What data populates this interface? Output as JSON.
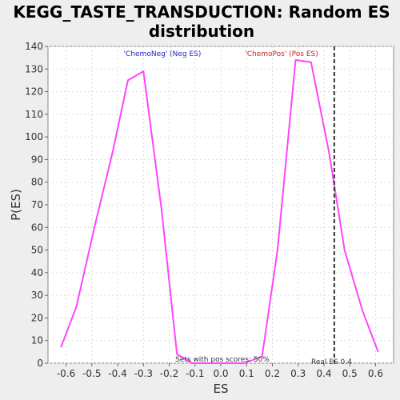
{
  "chart_data": {
    "type": "line",
    "title_line1": "KEGG_TASTE_TRANSDUCTION: Random ES",
    "title_line2": "distribution",
    "xlabel": "ES",
    "ylabel": "P(ES)",
    "xlim": [
      -0.67,
      0.67
    ],
    "ylim": [
      0,
      140
    ],
    "x_ticks": [
      "-0.6",
      "-0.5",
      "-0.4",
      "-0.3",
      "-0.2",
      "-0.1",
      "0.0",
      "0.1",
      "0.2",
      "0.3",
      "0.4",
      "0.5",
      "0.6"
    ],
    "x_tick_values": [
      -0.6,
      -0.5,
      -0.4,
      -0.3,
      -0.2,
      -0.1,
      0.0,
      0.1,
      0.2,
      0.3,
      0.4,
      0.5,
      0.6
    ],
    "y_ticks": [
      "0",
      "10",
      "20",
      "30",
      "40",
      "50",
      "60",
      "70",
      "80",
      "90",
      "100",
      "110",
      "120",
      "130",
      "140"
    ],
    "y_tick_values": [
      0,
      10,
      20,
      30,
      40,
      50,
      60,
      70,
      80,
      90,
      100,
      110,
      120,
      130,
      140
    ],
    "grid": true,
    "series": [
      {
        "color": "#ff44ff",
        "x": [
          -0.62,
          -0.56,
          -0.49,
          -0.42,
          -0.36,
          -0.3,
          -0.23,
          -0.17,
          -0.11,
          -0.05,
          0.02,
          0.09,
          0.16,
          0.22,
          0.29,
          0.35,
          0.42,
          0.48,
          0.55,
          0.61
        ],
        "y": [
          7,
          25,
          60,
          93,
          125,
          129,
          68,
          4,
          0,
          0,
          0,
          0,
          3,
          50,
          134,
          133,
          93,
          50,
          23,
          5
        ]
      }
    ],
    "annotations": {
      "neg_label": "'ChemoNeg' (Neg ES)",
      "neg_color": "#2222cc",
      "pos_label": "'ChemoPos' (Pos ES)",
      "pos_color": "#cc2222",
      "sets_text": "Sets with pos scores: 50%",
      "real_es_text": "Real ES 0.4",
      "real_es_value": 0.44
    }
  }
}
